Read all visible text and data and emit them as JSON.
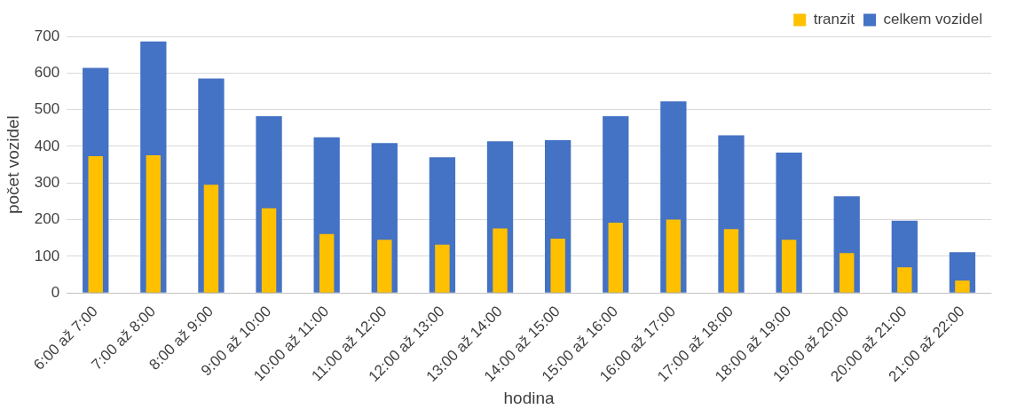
{
  "chart_data": {
    "type": "bar",
    "xlabel": "hodina",
    "ylabel": "počet vozidel",
    "categories": [
      "6:00 až 7:00",
      "7:00 až 8:00",
      "8:00 až 9:00",
      "9:00 až 10:00",
      "10:00 až 11:00",
      "11:00 až 12:00",
      "12:00 až 13:00",
      "13:00 až 14:00",
      "14:00 až 15:00",
      "15:00 až 16:00",
      "16:00 až 17:00",
      "17:00 až 18:00",
      "18:00 až 19:00",
      "19:00 až 20:00",
      "20:00 až 21:00",
      "21:00 až 22:00"
    ],
    "series": [
      {
        "name": "celkem vozidel",
        "color": "#4472c4",
        "values": [
          614,
          686,
          585,
          482,
          425,
          409,
          370,
          414,
          417,
          482,
          523,
          430,
          383,
          264,
          197,
          111
        ]
      },
      {
        "name": "tranzit",
        "color": "#ffc000",
        "values": [
          373,
          376,
          295,
          231,
          161,
          145,
          132,
          176,
          148,
          192,
          200,
          174,
          145,
          109,
          70,
          34
        ]
      }
    ],
    "ylim": [
      0,
      700
    ],
    "yticks": [
      0,
      100,
      200,
      300,
      400,
      500,
      600,
      700
    ],
    "grid": "y",
    "legend": "top right"
  }
}
